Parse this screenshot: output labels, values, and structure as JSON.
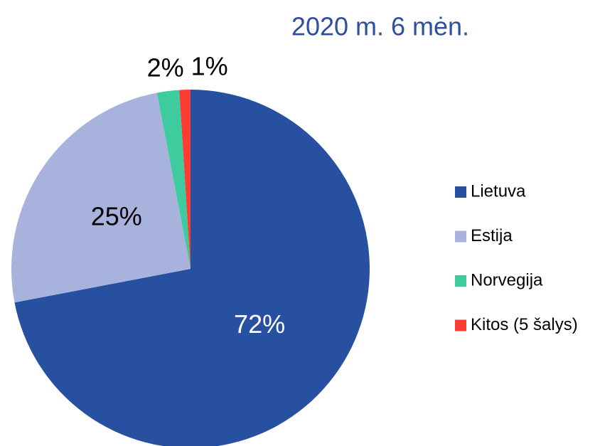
{
  "chart_data": {
    "type": "pie",
    "title": "2020 m. 6 mėn.",
    "categories": [
      "Lietuva",
      "Estija",
      "Norvegija",
      "Kitos (5 šalys)"
    ],
    "values": [
      72,
      25,
      2,
      1
    ],
    "value_labels": [
      "72%",
      "25%",
      "2%",
      "1%"
    ],
    "colors": [
      "#2850a0",
      "#a7b3dc",
      "#3ecb9e",
      "#fb3c32"
    ],
    "legend": "right"
  }
}
